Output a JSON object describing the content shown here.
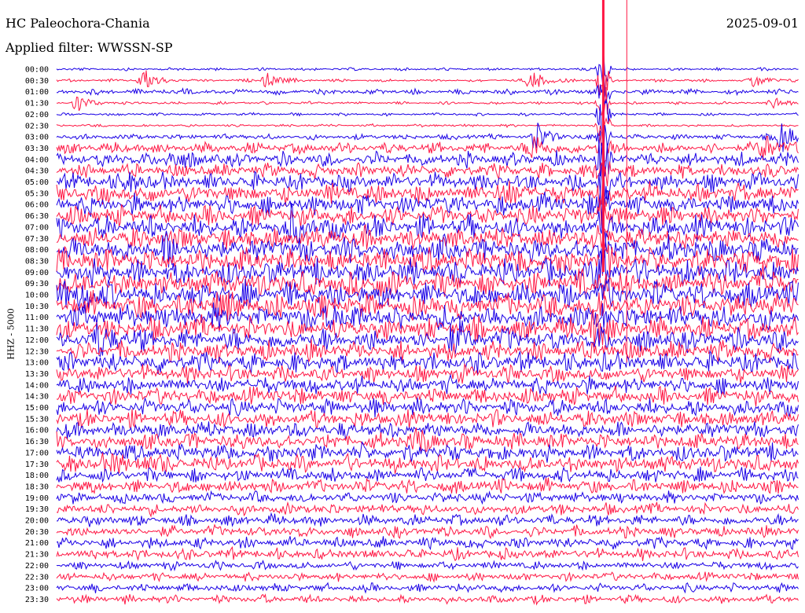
{
  "header": {
    "station": "HC Paleochora-Chania",
    "date": "2025-09-01",
    "filter_label": "Applied filter: WWSSN-SP"
  },
  "axis": {
    "ylabel": "HHZ - 5000"
  },
  "colors": {
    "even_row": "#1a00e6",
    "odd_row": "#ff1744",
    "background": "#ffffff"
  },
  "chart_data": {
    "type": "line",
    "title": "HC Paleochora-Chania",
    "subtitle": "Applied filter: WWSSN-SP",
    "ylabel": "HHZ - 5000",
    "rows": [
      "00:00",
      "00:30",
      "01:00",
      "01:30",
      "02:00",
      "02:30",
      "03:00",
      "03:30",
      "04:00",
      "04:30",
      "05:00",
      "05:30",
      "06:00",
      "06:30",
      "07:00",
      "07:30",
      "08:00",
      "08:30",
      "09:00",
      "09:30",
      "10:00",
      "10:30",
      "11:00",
      "11:30",
      "12:00",
      "12:30",
      "13:00",
      "13:30",
      "14:00",
      "14:30",
      "15:00",
      "15:30",
      "16:00",
      "16:30",
      "17:00",
      "17:30",
      "18:00",
      "18:30",
      "19:00",
      "19:30",
      "20:00",
      "20:30",
      "21:00",
      "21:30",
      "22:00",
      "22:30",
      "23:00",
      "23:30"
    ],
    "row_colors": [
      "blue",
      "red"
    ],
    "noise_amplitude": [
      1,
      1,
      2,
      1,
      1,
      1,
      2,
      4,
      5,
      5,
      6,
      7,
      7,
      7,
      8,
      8,
      9,
      9,
      9,
      9,
      9,
      9,
      9,
      8,
      8,
      7,
      7,
      6,
      6,
      6,
      6,
      6,
      6,
      6,
      6,
      6,
      5,
      5,
      4,
      4,
      4,
      4,
      4,
      4,
      3,
      3,
      3,
      3
    ],
    "events": [
      {
        "row": 1,
        "minute": 3.5,
        "amp": 16
      },
      {
        "row": 1,
        "minute": 8.5,
        "amp": 10
      },
      {
        "row": 1,
        "minute": 19.2,
        "amp": 14
      },
      {
        "row": 1,
        "minute": 28.2,
        "amp": 10
      },
      {
        "row": 3,
        "minute": 0.8,
        "amp": 12
      },
      {
        "row": 3,
        "minute": 29.0,
        "amp": 8
      },
      {
        "row": 6,
        "minute": 19.3,
        "amp": 22
      },
      {
        "row": 6,
        "minute": 29.3,
        "amp": 22
      },
      {
        "row": 7,
        "minute": 19.3,
        "amp": 18
      },
      {
        "row": 7,
        "minute": 28.6,
        "amp": 18
      },
      {
        "row": 8,
        "minute": 4.6,
        "amp": 12
      },
      {
        "row": 10,
        "minute": 3.0,
        "amp": 10
      },
      {
        "row": 11,
        "minute": 18.0,
        "amp": 14
      },
      {
        "row": 14,
        "minute": 9.5,
        "amp": 20
      },
      {
        "row": 16,
        "minute": 4.5,
        "amp": 14
      },
      {
        "row": 18,
        "minute": 22.0,
        "amp": 14
      },
      {
        "row": 19,
        "minute": 13.0,
        "amp": 14
      },
      {
        "row": 19,
        "minute": 28.7,
        "amp": 16
      },
      {
        "row": 20,
        "minute": 1.0,
        "amp": 18
      },
      {
        "row": 21,
        "minute": 6.5,
        "amp": 14
      },
      {
        "row": 22,
        "minute": 11.0,
        "amp": 14
      },
      {
        "row": 23,
        "minute": 21.7,
        "amp": 18
      },
      {
        "row": 24,
        "minute": 1.8,
        "amp": 18
      },
      {
        "row": 24,
        "minute": 16.0,
        "amp": 16
      },
      {
        "row": 33,
        "minute": 14.5,
        "amp": 14
      },
      {
        "row": 35,
        "minute": 1.8,
        "amp": 10
      },
      {
        "row": 35,
        "minute": 3.4,
        "amp": 10
      }
    ],
    "large_event": {
      "start_row": 0,
      "end_row": 26,
      "minute": 22.1,
      "amp": 30
    }
  }
}
